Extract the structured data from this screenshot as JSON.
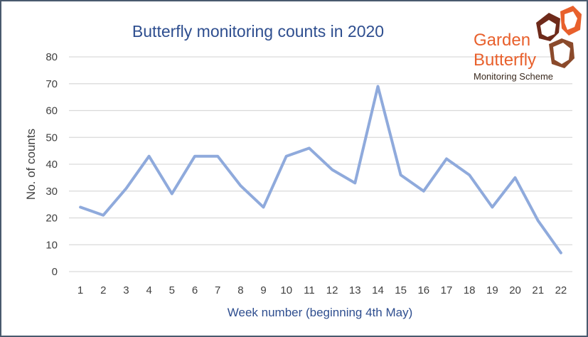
{
  "chart_data": {
    "type": "line",
    "title": "Butterfly monitoring counts in 2020",
    "xlabel": "Week number (beginning 4th May)",
    "ylabel": "No. of counts",
    "ylim": [
      0,
      80
    ],
    "yticks": [
      0,
      10,
      20,
      30,
      40,
      50,
      60,
      70,
      80
    ],
    "grid": true,
    "categories": [
      "1",
      "2",
      "3",
      "4",
      "5",
      "6",
      "7",
      "8",
      "9",
      "10",
      "11",
      "12",
      "13",
      "14",
      "15",
      "16",
      "17",
      "18",
      "19",
      "20",
      "21",
      "22"
    ],
    "series": [
      {
        "values": [
          24,
          21,
          31,
          43,
          29,
          43,
          43,
          32,
          24,
          43,
          46,
          38,
          33,
          69,
          36,
          30,
          42,
          36,
          24,
          35,
          19,
          7
        ],
        "color": "#8faadc"
      }
    ]
  },
  "logo": {
    "line1": "Garden",
    "line2": "Butterfly",
    "line3": "Monitoring Scheme",
    "colors": {
      "orange": "#e8602c",
      "brown": "#8b4a2b",
      "dark": "#3a2a1e"
    }
  }
}
